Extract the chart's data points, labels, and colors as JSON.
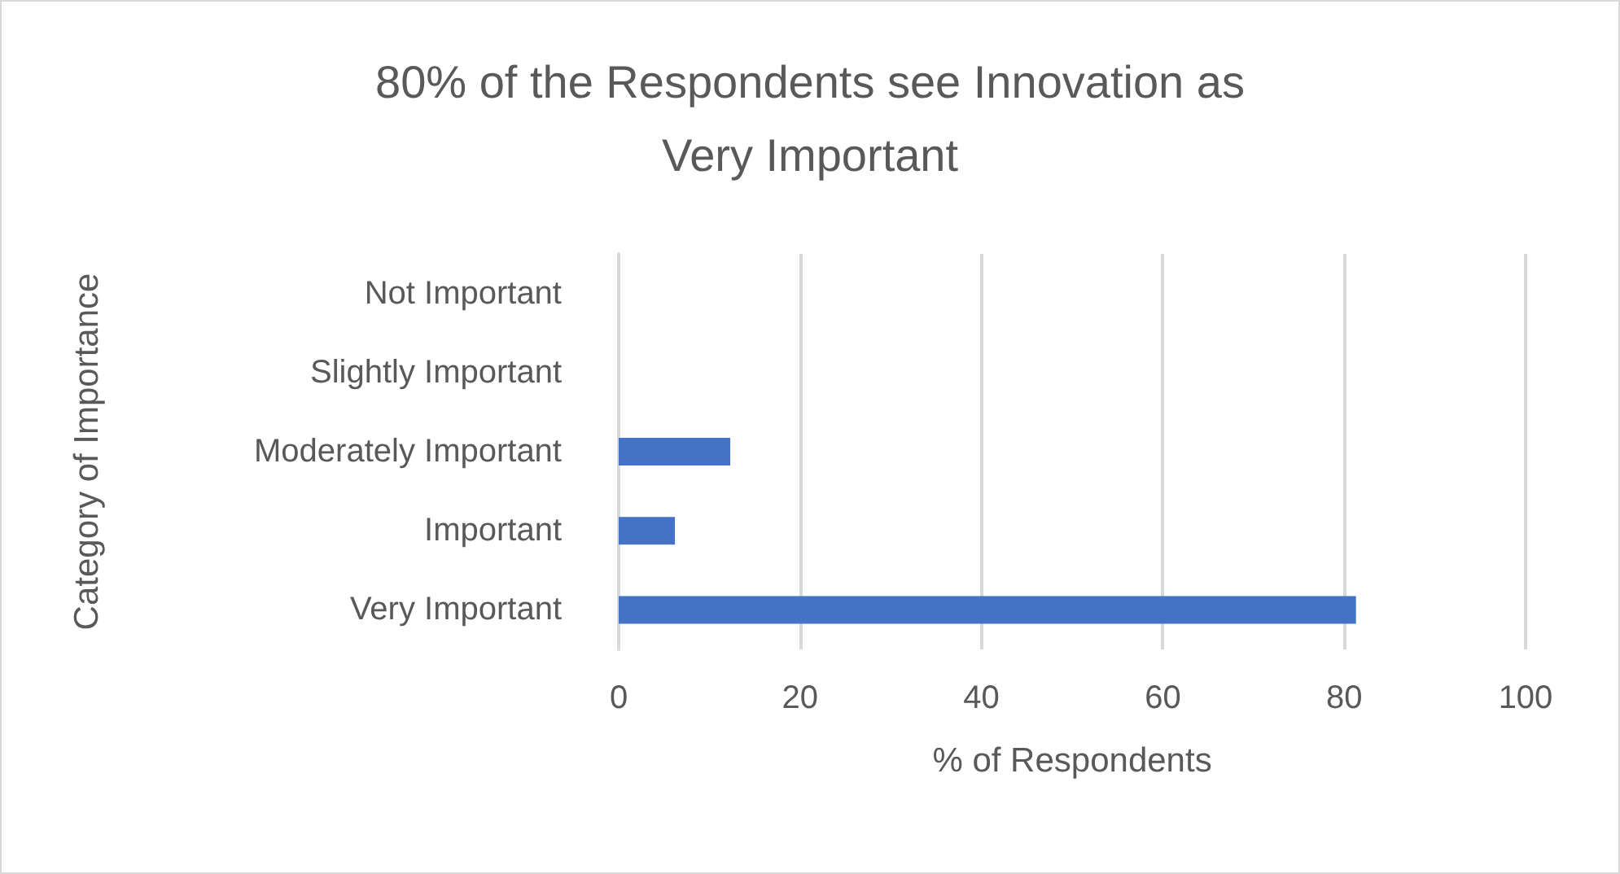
{
  "chart_data": {
    "type": "bar",
    "orientation": "horizontal",
    "title": "80% of the Respondents see Innovation as Very Important",
    "xlabel": "% of Respondents",
    "ylabel": "Category of Importance",
    "categories": [
      "Not Important",
      "Slightly Important",
      "Moderately Important",
      "Important",
      "Very Important"
    ],
    "values": [
      0,
      0,
      12.3,
      6.2,
      81.3
    ],
    "color": "#4472c4",
    "xlim": [
      0,
      100
    ],
    "xticks": [
      0,
      20,
      40,
      60,
      80,
      100
    ],
    "grid": "x"
  }
}
